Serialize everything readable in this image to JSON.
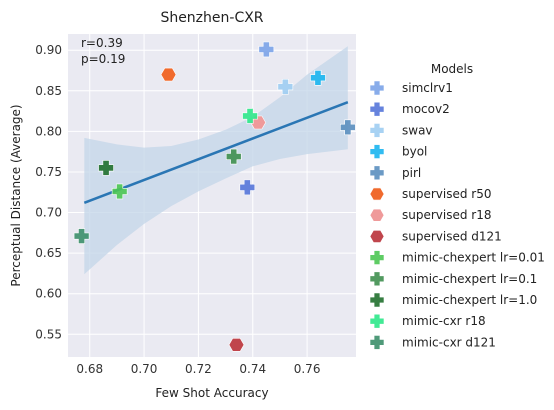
{
  "chart_data": {
    "type": "scatter",
    "title": "Shenzhen-CXR",
    "xlabel": "Few Shot Accuracy",
    "ylabel": "Perceptual Distance (Average)",
    "xlim": [
      0.672,
      0.778
    ],
    "ylim": [
      0.522,
      0.92
    ],
    "xticks": [
      0.68,
      0.7,
      0.72,
      0.74,
      0.76
    ],
    "xtick_labels": [
      "0.68",
      "0.70",
      "0.72",
      "0.74",
      "0.76"
    ],
    "yticks": [
      0.55,
      0.6,
      0.65,
      0.7,
      0.75,
      0.8,
      0.85,
      0.9
    ],
    "ytick_labels": [
      "0.55",
      "0.60",
      "0.65",
      "0.70",
      "0.75",
      "0.80",
      "0.85",
      "0.90"
    ],
    "grid": true,
    "annotations": [
      "r=0.39",
      "p=0.19"
    ],
    "regression": {
      "x": [
        0.678,
        0.775
      ],
      "y": [
        0.712,
        0.836
      ],
      "ci_band": [
        {
          "x": 0.678,
          "lo": 0.624,
          "hi": 0.792
        },
        {
          "x": 0.69,
          "lo": 0.66,
          "hi": 0.784
        },
        {
          "x": 0.7,
          "lo": 0.686,
          "hi": 0.78
        },
        {
          "x": 0.71,
          "lo": 0.708,
          "hi": 0.782
        },
        {
          "x": 0.72,
          "lo": 0.726,
          "hi": 0.79
        },
        {
          "x": 0.73,
          "lo": 0.742,
          "hi": 0.802
        },
        {
          "x": 0.74,
          "lo": 0.757,
          "hi": 0.818
        },
        {
          "x": 0.75,
          "lo": 0.766,
          "hi": 0.842
        },
        {
          "x": 0.76,
          "lo": 0.772,
          "hi": 0.87
        },
        {
          "x": 0.775,
          "lo": 0.778,
          "hi": 0.905
        }
      ]
    },
    "legend_title": "Models",
    "legend_position": "outside-right",
    "series": [
      {
        "name": "simclrv1",
        "color": "#7ba3e8",
        "marker": "plus",
        "x": 0.745,
        "y": 0.901
      },
      {
        "name": "mocov2",
        "color": "#5576d9",
        "marker": "plus",
        "x": 0.738,
        "y": 0.731
      },
      {
        "name": "swav",
        "color": "#9fcdf2",
        "marker": "plus",
        "x": 0.752,
        "y": 0.855
      },
      {
        "name": "byol",
        "color": "#1bb5f0",
        "marker": "plus",
        "x": 0.764,
        "y": 0.866
      },
      {
        "name": "pirl",
        "color": "#5b8fbf",
        "marker": "plus",
        "x": 0.775,
        "y": 0.805
      },
      {
        "name": "supervised r50",
        "color": "#f06a2d",
        "marker": "hexagon",
        "x": 0.709,
        "y": 0.87
      },
      {
        "name": "supervised r18",
        "color": "#ef9a9a",
        "marker": "hexagon",
        "x": 0.742,
        "y": 0.811
      },
      {
        "name": "supervised d121",
        "color": "#c0454c",
        "marker": "hexagon",
        "x": 0.734,
        "y": 0.537
      },
      {
        "name": "mimic-chexpert lr=0.01",
        "color": "#4dc653",
        "marker": "plus",
        "x": 0.691,
        "y": 0.726
      },
      {
        "name": "mimic-chexpert lr=0.1",
        "color": "#3f8f4f",
        "marker": "plus",
        "x": 0.733,
        "y": 0.769
      },
      {
        "name": "mimic-chexpert lr=1.0",
        "color": "#21702e",
        "marker": "plus",
        "x": 0.686,
        "y": 0.755
      },
      {
        "name": "mimic-cxr r18",
        "color": "#2ee88a",
        "marker": "plus",
        "x": 0.739,
        "y": 0.819
      },
      {
        "name": "mimic-cxr d121",
        "color": "#3c8f6a",
        "marker": "plus",
        "x": 0.677,
        "y": 0.671
      }
    ]
  },
  "colors": {
    "plot_background": "#eaeaf2",
    "grid": "#ffffff",
    "regression_line": "#2a76b4",
    "ci_band": "#c3d5e8"
  }
}
